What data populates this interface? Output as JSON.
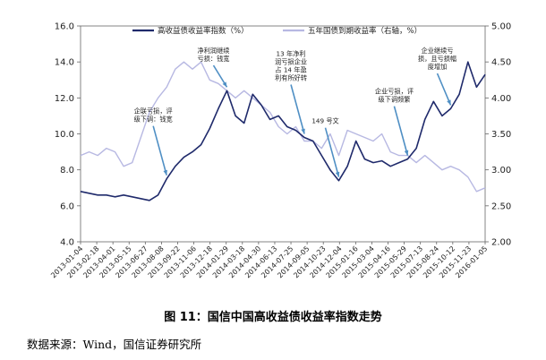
{
  "chart_data": {
    "type": "line",
    "title": "",
    "xlabel": "",
    "ylabel": "",
    "ylim": [
      4.0,
      16.0
    ],
    "y2lim": [
      2.0,
      5.0
    ],
    "yticks": [
      "4.0",
      "6.0",
      "8.0",
      "10.0",
      "12.0",
      "14.0",
      "16.0"
    ],
    "y2ticks": [
      "2.00",
      "2.50",
      "3.00",
      "3.50",
      "4.00",
      "4.50",
      "5.00"
    ],
    "grid": false,
    "legend_position": "top",
    "x_ticks": [
      "2013-01-04",
      "2013-02-18",
      "2013-04-01",
      "2013-05-15",
      "2013-06-27",
      "2013-08-08",
      "2013-09-22",
      "2013-11-06",
      "2013-12-18",
      "2014-01-29",
      "2014-03-18",
      "2014-04-30",
      "2014-06-13",
      "2014-07-25",
      "2014-09-05",
      "2014-10-23",
      "2014-12-04",
      "2015-01-16",
      "2015-03-04",
      "2015-04-16",
      "2015-05-29",
      "2015-07-13",
      "2015-08-24",
      "2015-10-12",
      "2015-11-23",
      "2016-01-05"
    ],
    "series": [
      {
        "name": "高收益债收益率指数（%）",
        "axis": "left",
        "color": "#1f2a6b",
        "values": [
          6.8,
          6.7,
          6.6,
          6.6,
          6.5,
          6.6,
          6.5,
          6.4,
          6.3,
          6.6,
          7.5,
          8.2,
          8.7,
          9.0,
          9.4,
          10.3,
          11.4,
          12.4,
          11.0,
          10.6,
          12.2,
          11.6,
          10.8,
          11.0,
          10.4,
          10.2,
          9.8,
          9.6,
          8.8,
          8.0,
          7.4,
          8.2,
          9.6,
          8.6,
          8.4,
          8.5,
          8.2,
          8.4,
          8.6,
          9.2,
          10.8,
          11.8,
          11.0,
          11.4,
          12.2,
          14.0,
          12.6,
          13.3
        ]
      },
      {
        "name": "五年国债到期收益率（右轴，%）",
        "axis": "right",
        "color": "#b7b8e2",
        "values": [
          3.2,
          3.25,
          3.2,
          3.3,
          3.25,
          3.05,
          3.1,
          3.45,
          3.8,
          4.0,
          4.15,
          4.4,
          4.5,
          4.4,
          4.5,
          4.25,
          4.2,
          4.1,
          4.0,
          4.1,
          4.0,
          3.9,
          3.8,
          3.6,
          3.5,
          3.6,
          3.4,
          3.4,
          3.3,
          3.5,
          3.2,
          3.55,
          3.5,
          3.45,
          3.4,
          3.5,
          3.25,
          3.2,
          3.2,
          3.1,
          3.2,
          3.1,
          3.0,
          3.05,
          3.0,
          2.9,
          2.7,
          2.75
        ]
      }
    ],
    "annotations": [
      {
        "lines": [
          "企联亏损，评",
          "级下调：钱宽"
        ],
        "target_index": 10
      },
      {
        "lines": [
          "净利润继续",
          "亏损：钱宽"
        ],
        "target_index": 17
      },
      {
        "lines": [
          "13 年净利",
          "润亏损企业",
          "占 14 年盈",
          "利有所好转"
        ],
        "target_index": 26
      },
      {
        "lines": [
          "149 号文"
        ],
        "target_index": 30
      },
      {
        "lines": [
          "企业亏损，评",
          "级下调频繁"
        ],
        "target_index": 38
      },
      {
        "lines": [
          "企业继续亏",
          "损，且亏损幅",
          "度增加"
        ],
        "target_index": 43
      }
    ]
  },
  "caption": "图 11：国信中国高收益债收益率指数走势",
  "source": "数据来源：Wind，国信证券研究所"
}
